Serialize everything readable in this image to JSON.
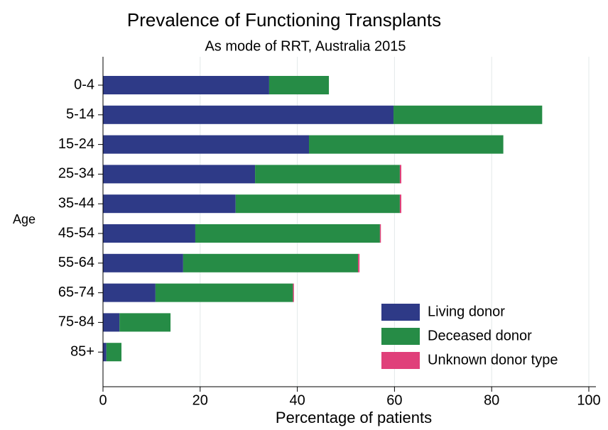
{
  "chart_data": {
    "type": "stacked-barh",
    "title": "Prevalence of Functioning Transplants",
    "subtitle": "As mode of RRT, Australia 2015",
    "x_label": "Percentage of patients",
    "y_label": "Age",
    "categories": [
      "0-4",
      "5-14",
      "15-24",
      "25-34",
      "35-44",
      "45-54",
      "55-64",
      "65-74",
      "75-84",
      "85+"
    ],
    "series": [
      {
        "name": "Living donor",
        "color": "#2e3a87",
        "values": [
          34.2,
          59.8,
          42.4,
          31.3,
          27.3,
          19.0,
          16.5,
          10.8,
          3.4,
          0.7
        ]
      },
      {
        "name": "Deceased donor",
        "color": "#268c46",
        "values": [
          12.3,
          30.6,
          40.0,
          29.8,
          33.8,
          38.0,
          36.0,
          28.3,
          10.5,
          3.1
        ]
      },
      {
        "name": "Unknown donor type",
        "color": "#e0407a",
        "values": [
          0,
          0,
          0,
          0.3,
          0.3,
          0.2,
          0.3,
          0.2,
          0,
          0
        ]
      }
    ],
    "xlim": [
      0,
      100
    ],
    "xticks": [
      0,
      20,
      40,
      60,
      80,
      100
    ],
    "grid": true,
    "legend": "lower right"
  }
}
